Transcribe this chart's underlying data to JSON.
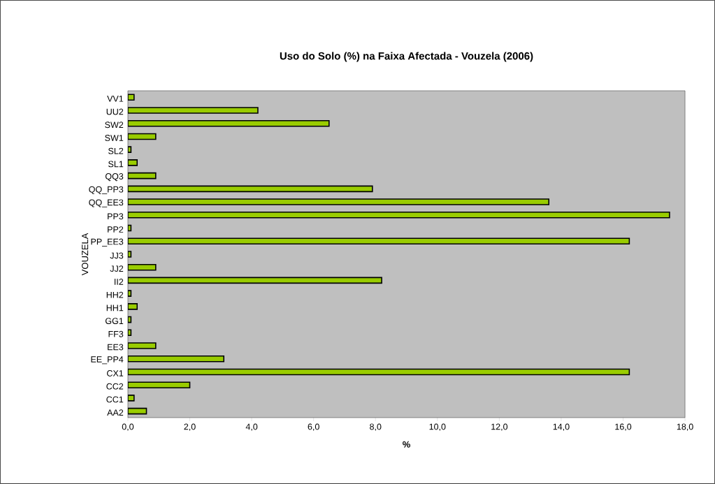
{
  "chart_data": {
    "type": "bar",
    "orientation": "horizontal",
    "title": "Uso do Solo (%) na Faixa Afectada - Vouzela (2006)",
    "xlabel": "%",
    "ylabel": "VOUZELA",
    "categories": [
      "VV1",
      "UU2",
      "SW2",
      "SW1",
      "SL2",
      "SL1",
      "QQ3",
      "QQ_PP3",
      "QQ_EE3",
      "PP3",
      "PP2",
      "PP_EE3",
      "JJ3",
      "JJ2",
      "II2",
      "HH2",
      "HH1",
      "GG1",
      "FF3",
      "EE3",
      "EE_PP4",
      "CX1",
      "CC2",
      "CC1",
      "AA2"
    ],
    "values": [
      0.2,
      4.2,
      6.5,
      0.9,
      0.1,
      0.3,
      0.9,
      7.9,
      13.6,
      17.5,
      0.1,
      16.2,
      0.1,
      0.9,
      8.2,
      0.1,
      0.3,
      0.1,
      0.1,
      0.9,
      3.1,
      16.2,
      2.0,
      0.2,
      0.6
    ],
    "color": "#99cc00",
    "xlim": [
      0,
      18
    ],
    "xticks": [
      {
        "value": 0,
        "label": "0,0"
      },
      {
        "value": 2,
        "label": "2,0"
      },
      {
        "value": 4,
        "label": "4,0"
      },
      {
        "value": 6,
        "label": "6,0"
      },
      {
        "value": 8,
        "label": "8,0"
      },
      {
        "value": 10,
        "label": "10,0"
      },
      {
        "value": 12,
        "label": "12,0"
      },
      {
        "value": 14,
        "label": "14,0"
      },
      {
        "value": 16,
        "label": "16,0"
      },
      {
        "value": 18,
        "label": "18,0"
      }
    ]
  }
}
